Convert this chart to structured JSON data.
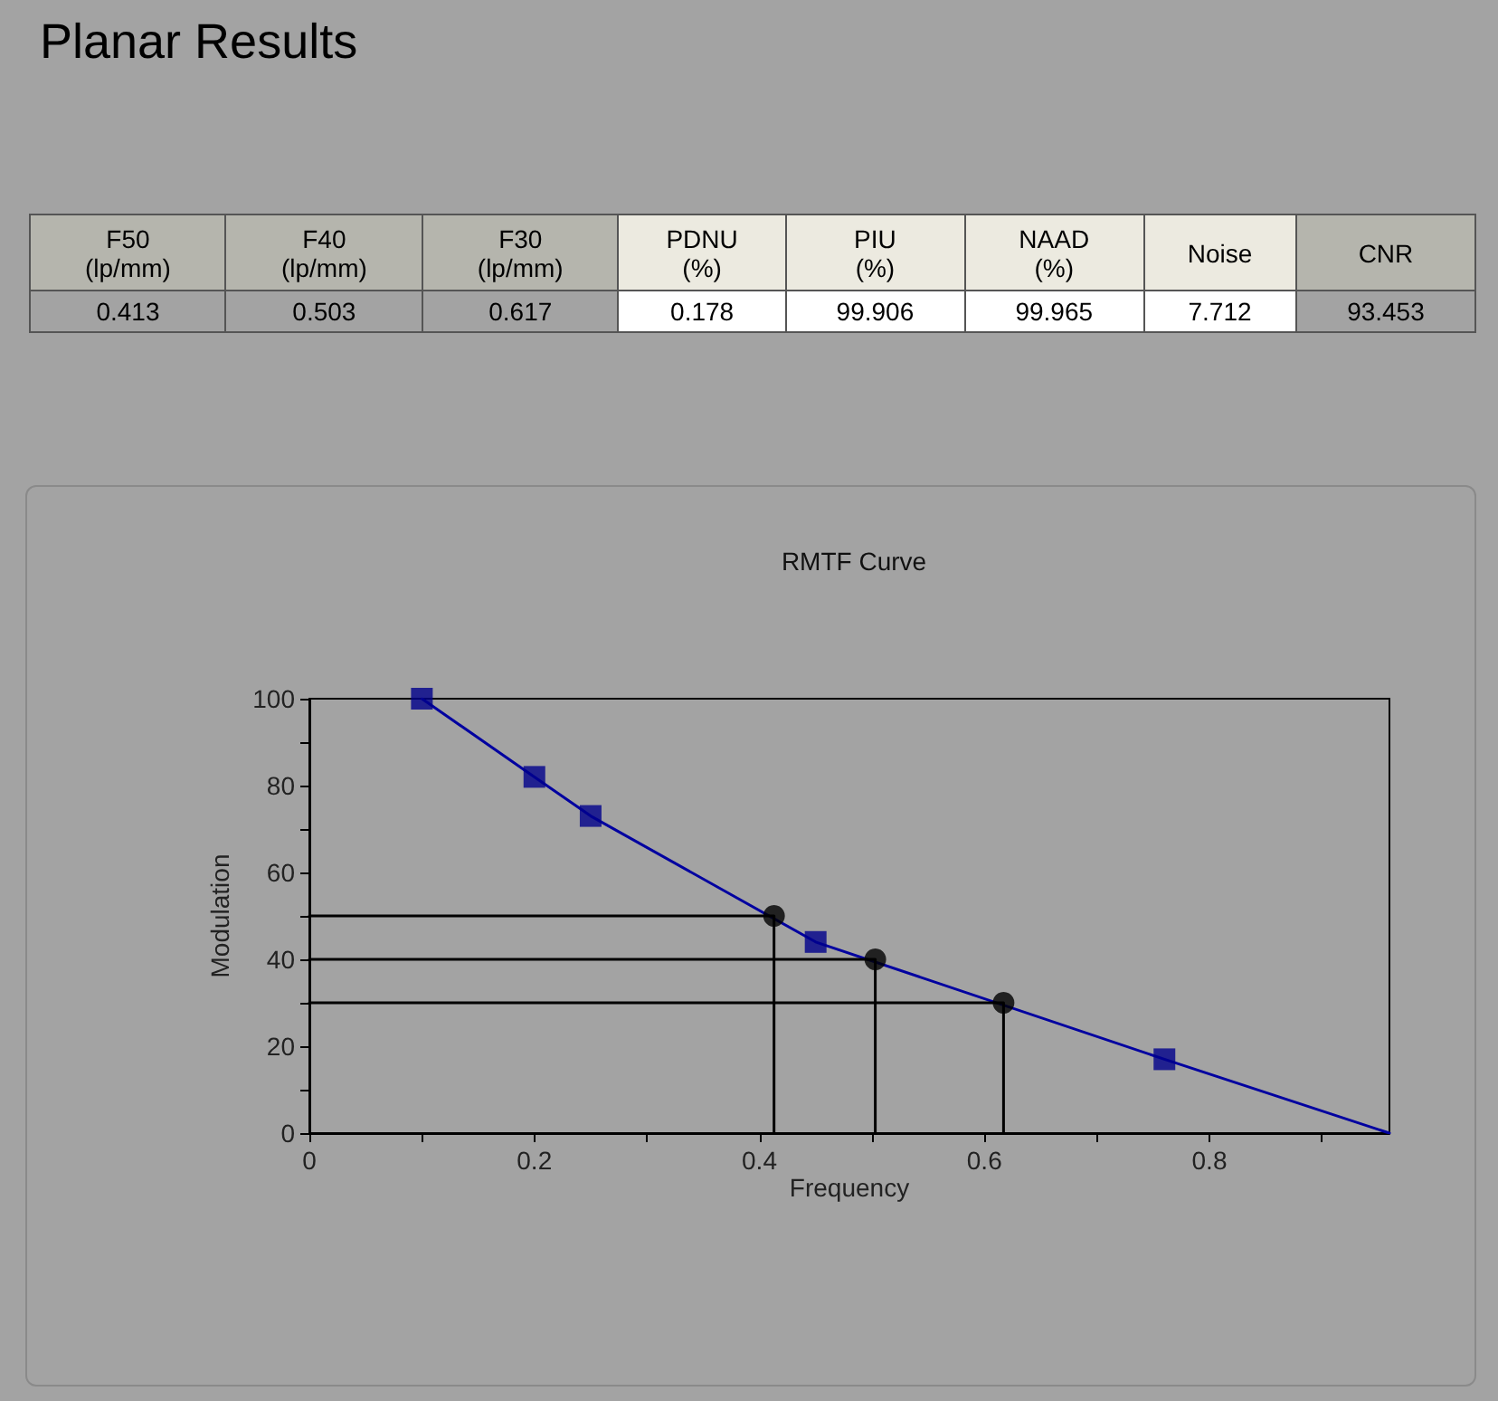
{
  "chart_data": [
    {
      "type": "other",
      "title": "Planar Results",
      "categories": [
        "F50\n(lp/mm)",
        "F40\n(lp/mm)",
        "F30\n(lp/mm)",
        "PDNU\n(%)",
        "PIU\n(%)",
        "NAAD\n(%)",
        "Noise",
        "CNR"
      ],
      "values": [
        0.413,
        0.503,
        0.617,
        0.178,
        99.906,
        99.965,
        7.712,
        93.453
      ],
      "data_labels": true
    },
    {
      "type": "line",
      "title": "RMTF Curve",
      "xlabel": "Frequency",
      "ylabel": "Modulation",
      "xlim": [
        0,
        0.96
      ],
      "ylim": [
        0,
        100
      ],
      "xticks": [
        0,
        {
          "value": 0.1,
          "label": null
        },
        0.2,
        {
          "value": 0.3,
          "label": null
        },
        0.4,
        {
          "value": 0.5,
          "label": null
        },
        0.6,
        {
          "value": 0.7,
          "label": null
        },
        0.8,
        {
          "value": 0.9,
          "label": null
        }
      ],
      "yticks": [
        0,
        {
          "value": 10,
          "label": null
        },
        20,
        {
          "value": 30,
          "label": null
        },
        40,
        {
          "value": 50,
          "label": null
        },
        60,
        {
          "value": 70,
          "label": null
        },
        80,
        {
          "value": 90,
          "label": null
        },
        100
      ],
      "series": [
        {
          "type": "line",
          "color": "#0000a0",
          "marker": "none",
          "x": [
            0.1,
            0.2,
            0.25,
            0.45,
            0.76,
            0.96
          ],
          "values": [
            100,
            82,
            73,
            44,
            17,
            0
          ]
        },
        {
          "type": "scatter",
          "color": "#00008b",
          "marker": "square",
          "x": [
            0.1,
            0.2,
            0.25,
            0.45,
            0.76
          ],
          "values": [
            100,
            82,
            73,
            44,
            17
          ]
        },
        {
          "type": "line",
          "color": "#000000",
          "marker": "none",
          "x": [
            0,
            0.413,
            0.413
          ],
          "values": [
            50,
            50,
            0
          ]
        },
        {
          "type": "line",
          "color": "#000000",
          "marker": "none",
          "x": [
            0,
            0.503,
            0.503
          ],
          "values": [
            40,
            40,
            0
          ]
        },
        {
          "type": "line",
          "color": "#000000",
          "marker": "none",
          "x": [
            0,
            0.617,
            0.617
          ],
          "values": [
            30,
            30,
            0
          ]
        },
        {
          "type": "scatter",
          "color": "#000000",
          "marker": "circle",
          "x": [
            0.413,
            0.503,
            0.617
          ],
          "values": [
            50,
            40,
            30
          ]
        }
      ]
    }
  ]
}
